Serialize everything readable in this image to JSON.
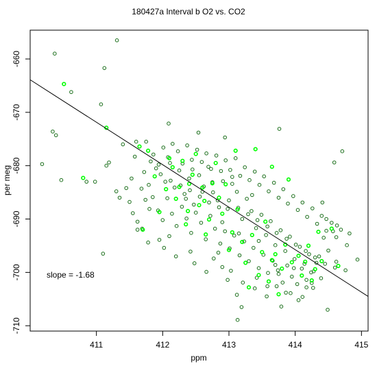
{
  "chart_data": {
    "type": "scatter",
    "title": "180427a   Interval b O2 vs. CO2",
    "xlabel": "ppm",
    "ylabel": "per meg",
    "xlim": [
      410.0,
      415.1
    ],
    "ylim": [
      -711.0,
      -654.6
    ],
    "xticks": [
      411,
      412,
      413,
      414,
      415
    ],
    "yticks": [
      -710,
      -700,
      -690,
      -680,
      -670,
      -660
    ],
    "annotation": "slope =  -1.68",
    "fit_line": {
      "slope": -1.68,
      "x": [
        410.0,
        415.1
      ],
      "y": [
        -663.9,
        -704.5
      ]
    },
    "colors": {
      "dark": "#1a6e1a",
      "bright": "#00ff00",
      "line": "#000000"
    },
    "series": [
      {
        "color": "dark",
        "points": [
          [
            410.37,
            -659.0
          ],
          [
            410.62,
            -666.2
          ],
          [
            411.12,
            -661.7
          ],
          [
            411.31,
            -656.5
          ],
          [
            410.34,
            -673.6
          ],
          [
            410.39,
            -674.3
          ],
          [
            411.07,
            -668.5
          ],
          [
            410.18,
            -679.7
          ],
          [
            410.47,
            -682.7
          ],
          [
            411.1,
            -696.5
          ],
          [
            410.98,
            -683.0
          ],
          [
            410.85,
            -683.0
          ],
          [
            411.15,
            -680.0
          ],
          [
            411.19,
            -679.4
          ],
          [
            411.45,
            -684.2
          ],
          [
            411.3,
            -684.8
          ],
          [
            411.35,
            -686.0
          ],
          [
            411.53,
            -682.4
          ],
          [
            411.4,
            -676.0
          ],
          [
            411.6,
            -675.5
          ],
          [
            411.62,
            -692.0
          ],
          [
            411.69,
            -691.8
          ],
          [
            411.78,
            -694.4
          ],
          [
            411.95,
            -693.9
          ],
          [
            412.1,
            -693.2
          ],
          [
            412.42,
            -696.1
          ],
          [
            412.77,
            -697.4
          ],
          [
            412.9,
            -699.0
          ],
          [
            412.98,
            -701.4
          ],
          [
            413.12,
            -704.2
          ],
          [
            413.13,
            -708.9
          ],
          [
            413.19,
            -706.5
          ],
          [
            413.42,
            -701.0
          ],
          [
            413.58,
            -702.6
          ],
          [
            413.72,
            -702.6
          ],
          [
            413.79,
            -706.4
          ],
          [
            413.86,
            -703.8
          ],
          [
            414.05,
            -705.2
          ],
          [
            414.17,
            -702.8
          ],
          [
            414.27,
            -702.9
          ],
          [
            414.49,
            -707.0
          ],
          [
            414.62,
            -698.0
          ],
          [
            414.76,
            -699.6
          ],
          [
            414.94,
            -697.6
          ],
          [
            414.82,
            -692.7
          ],
          [
            414.78,
            -694.9
          ],
          [
            414.63,
            -691.2
          ],
          [
            414.47,
            -690.0
          ],
          [
            414.41,
            -686.9
          ],
          [
            414.59,
            -679.4
          ],
          [
            414.71,
            -677.3
          ],
          [
            413.76,
            -673.1
          ],
          [
            412.94,
            -674.7
          ],
          [
            412.54,
            -673.8
          ],
          [
            412.09,
            -672.1
          ],
          [
            411.75,
            -675.5
          ],
          [
            411.58,
            -678.3
          ],
          [
            411.82,
            -679.2
          ],
          [
            411.9,
            -680.5
          ],
          [
            411.97,
            -681.6
          ],
          [
            412.04,
            -683.0
          ],
          [
            412.11,
            -679.5
          ],
          [
            412.18,
            -684.1
          ],
          [
            412.25,
            -680.9
          ],
          [
            412.33,
            -685.3
          ],
          [
            412.4,
            -682.4
          ],
          [
            412.47,
            -687.3
          ],
          [
            412.55,
            -681.8
          ],
          [
            412.62,
            -683.9
          ],
          [
            412.69,
            -680.2
          ],
          [
            412.76,
            -685.0
          ],
          [
            412.83,
            -686.5
          ],
          [
            412.91,
            -682.9
          ],
          [
            412.98,
            -688.1
          ],
          [
            413.05,
            -683.4
          ],
          [
            413.12,
            -684.9
          ],
          [
            413.2,
            -690.0
          ],
          [
            413.27,
            -686.2
          ],
          [
            413.34,
            -688.5
          ],
          [
            413.41,
            -691.7
          ],
          [
            413.49,
            -689.2
          ],
          [
            413.56,
            -693.0
          ],
          [
            413.63,
            -690.4
          ],
          [
            413.7,
            -694.9
          ],
          [
            413.78,
            -692.1
          ],
          [
            413.85,
            -696.0
          ],
          [
            413.92,
            -693.3
          ],
          [
            413.99,
            -697.5
          ],
          [
            414.07,
            -695.2
          ],
          [
            414.14,
            -698.4
          ],
          [
            414.21,
            -696.6
          ],
          [
            414.28,
            -699.8
          ],
          [
            414.36,
            -697.0
          ],
          [
            414.43,
            -693.5
          ],
          [
            414.5,
            -695.9
          ],
          [
            414.57,
            -692.3
          ],
          [
            411.85,
            -685.9
          ],
          [
            411.93,
            -688.4
          ],
          [
            412.0,
            -690.2
          ],
          [
            412.07,
            -686.1
          ],
          [
            412.14,
            -689.0
          ],
          [
            412.21,
            -691.3
          ],
          [
            412.29,
            -687.7
          ],
          [
            412.36,
            -689.9
          ],
          [
            412.43,
            -692.6
          ],
          [
            412.5,
            -688.8
          ],
          [
            412.58,
            -690.7
          ],
          [
            412.65,
            -693.8
          ],
          [
            412.72,
            -689.4
          ],
          [
            412.79,
            -691.8
          ],
          [
            412.87,
            -694.6
          ],
          [
            412.94,
            -692.3
          ],
          [
            413.01,
            -695.5
          ],
          [
            413.08,
            -693.1
          ],
          [
            413.16,
            -696.8
          ],
          [
            413.23,
            -694.2
          ],
          [
            413.3,
            -697.9
          ],
          [
            413.37,
            -695.4
          ],
          [
            413.45,
            -699.2
          ],
          [
            413.52,
            -696.7
          ],
          [
            413.59,
            -700.1
          ],
          [
            413.66,
            -697.8
          ],
          [
            413.74,
            -699.6
          ],
          [
            413.81,
            -701.9
          ],
          [
            413.88,
            -698.7
          ],
          [
            413.95,
            -700.8
          ],
          [
            414.03,
            -702.2
          ],
          [
            414.1,
            -699.3
          ],
          [
            414.17,
            -701.4
          ],
          [
            414.24,
            -700.0
          ],
          [
            414.32,
            -698.2
          ],
          [
            414.39,
            -701.1
          ],
          [
            411.72,
            -681.2
          ],
          [
            411.79,
            -683.6
          ],
          [
            411.86,
            -677.9
          ],
          [
            411.94,
            -679.8
          ],
          [
            412.01,
            -676.6
          ],
          [
            412.08,
            -678.4
          ],
          [
            412.15,
            -675.9
          ],
          [
            412.23,
            -677.3
          ],
          [
            412.3,
            -679.6
          ],
          [
            412.37,
            -676.2
          ],
          [
            412.44,
            -678.9
          ],
          [
            412.52,
            -677.0
          ],
          [
            412.59,
            -679.3
          ],
          [
            412.66,
            -677.7
          ],
          [
            412.73,
            -680.6
          ],
          [
            412.81,
            -678.1
          ],
          [
            412.88,
            -681.0
          ],
          [
            412.95,
            -679.0
          ],
          [
            413.02,
            -680.8
          ],
          [
            413.1,
            -678.6
          ],
          [
            413.17,
            -681.9
          ],
          [
            413.24,
            -680.3
          ],
          [
            413.31,
            -682.7
          ],
          [
            413.39,
            -681.1
          ],
          [
            413.46,
            -683.6
          ],
          [
            413.53,
            -682.0
          ],
          [
            413.6,
            -684.8
          ],
          [
            413.68,
            -683.2
          ],
          [
            413.75,
            -686.0
          ],
          [
            413.82,
            -684.4
          ],
          [
            413.89,
            -687.1
          ],
          [
            413.97,
            -685.7
          ],
          [
            414.04,
            -688.3
          ],
          [
            414.11,
            -686.9
          ],
          [
            414.18,
            -689.6
          ],
          [
            414.26,
            -688.0
          ],
          [
            414.33,
            -690.9
          ],
          [
            414.4,
            -689.4
          ],
          [
            414.47,
            -692.2
          ],
          [
            414.55,
            -690.7
          ],
          [
            414.62,
            -693.4
          ],
          [
            414.69,
            -692.0
          ],
          [
            412.02,
            -695.4
          ],
          [
            412.2,
            -697.0
          ],
          [
            412.48,
            -698.3
          ],
          [
            412.66,
            -699.9
          ],
          [
            412.84,
            -696.3
          ],
          [
            413.03,
            -699.7
          ],
          [
            413.21,
            -701.9
          ],
          [
            413.39,
            -703.0
          ],
          [
            413.57,
            -704.5
          ],
          [
            413.75,
            -700.3
          ],
          [
            413.93,
            -703.9
          ],
          [
            414.11,
            -704.6
          ],
          [
            411.5,
            -686.8
          ],
          [
            411.55,
            -688.9
          ],
          [
            411.62,
            -690.5
          ],
          [
            411.68,
            -684.3
          ],
          [
            411.74,
            -686.4
          ],
          [
            411.8,
            -688.1
          ],
          [
            412.12,
            -682.8
          ],
          [
            412.27,
            -683.7
          ],
          [
            412.41,
            -684.6
          ],
          [
            412.56,
            -685.8
          ],
          [
            412.7,
            -686.9
          ],
          [
            412.85,
            -687.8
          ],
          [
            413.0,
            -686.5
          ],
          [
            413.14,
            -687.9
          ],
          [
            413.29,
            -689.1
          ],
          [
            413.43,
            -690.2
          ],
          [
            413.58,
            -691.4
          ],
          [
            413.72,
            -692.6
          ],
          [
            413.87,
            -693.7
          ],
          [
            414.01,
            -694.8
          ],
          [
            414.16,
            -696.0
          ],
          [
            414.3,
            -697.2
          ],
          [
            414.45,
            -698.4
          ],
          [
            414.6,
            -699.1
          ],
          [
            412.35,
            -686.2
          ],
          [
            412.6,
            -684.9
          ],
          [
            412.9,
            -690.6
          ],
          [
            413.15,
            -692.7
          ],
          [
            413.45,
            -694.1
          ],
          [
            413.7,
            -698.6
          ],
          [
            413.98,
            -699.2
          ],
          [
            414.25,
            -702.0
          ],
          [
            413.35,
            -685.5
          ],
          [
            413.05,
            -682.1
          ],
          [
            412.75,
            -683.1
          ],
          [
            412.45,
            -680.7
          ]
        ]
      },
      {
        "color": "bright",
        "points": [
          [
            410.51,
            -664.7
          ],
          [
            411.15,
            -672.9
          ],
          [
            410.8,
            -682.3
          ],
          [
            411.7,
            -692.0
          ],
          [
            411.78,
            -677.2
          ],
          [
            411.65,
            -676.4
          ],
          [
            412.15,
            -680.3
          ],
          [
            412.3,
            -679.1
          ],
          [
            412.45,
            -681.7
          ],
          [
            412.6,
            -684.1
          ],
          [
            412.75,
            -683.3
          ],
          [
            412.2,
            -686.2
          ],
          [
            412.38,
            -688.5
          ],
          [
            412.55,
            -687.4
          ],
          [
            412.7,
            -690.1
          ],
          [
            412.9,
            -689.0
          ],
          [
            413.05,
            -692.5
          ],
          [
            413.2,
            -694.3
          ],
          [
            413.35,
            -693.0
          ],
          [
            413.5,
            -696.2
          ],
          [
            413.65,
            -697.7
          ],
          [
            413.8,
            -699.3
          ],
          [
            413.95,
            -698.1
          ],
          [
            414.1,
            -700.6
          ],
          [
            414.25,
            -701.5
          ],
          [
            414.4,
            -697.9
          ],
          [
            413.6,
            -701.7
          ],
          [
            413.75,
            -704.1
          ],
          [
            413.3,
            -702.8
          ],
          [
            412.95,
            -683.5
          ],
          [
            412.5,
            -677.8
          ],
          [
            412.8,
            -679.5
          ],
          [
            413.1,
            -677.2
          ],
          [
            413.4,
            -676.9
          ],
          [
            413.65,
            -680.2
          ],
          [
            413.9,
            -682.6
          ],
          [
            414.2,
            -695.0
          ],
          [
            414.35,
            -692.4
          ],
          [
            414.55,
            -691.8
          ],
          [
            414.65,
            -698.8
          ],
          [
            412.05,
            -684.4
          ],
          [
            411.95,
            -688.7
          ],
          [
            411.88,
            -682.0
          ],
          [
            412.25,
            -684.0
          ],
          [
            412.63,
            -686.6
          ],
          [
            412.85,
            -686.0
          ],
          [
            413.13,
            -688.2
          ],
          [
            413.55,
            -690.5
          ],
          [
            413.85,
            -694.8
          ],
          [
            414.05,
            -696.9
          ],
          [
            414.3,
            -699.4
          ],
          [
            412.35,
            -691.0
          ],
          [
            412.65,
            -692.9
          ],
          [
            413.0,
            -695.8
          ],
          [
            413.25,
            -698.2
          ],
          [
            413.45,
            -700.5
          ],
          [
            413.7,
            -696.6
          ],
          [
            414.15,
            -698.0
          ],
          [
            412.1,
            -678.6
          ],
          [
            412.4,
            -683.4
          ]
        ]
      }
    ]
  }
}
